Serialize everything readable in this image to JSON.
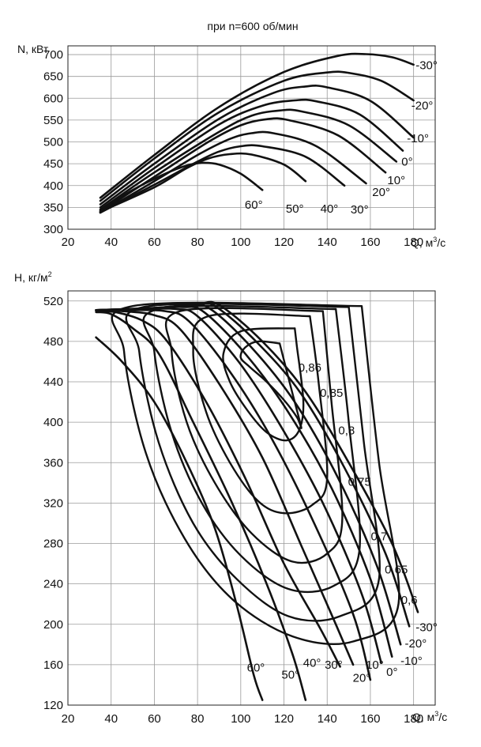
{
  "colors": {
    "curve": "#111111",
    "grid": "#9a9a9a",
    "frame": "#222222",
    "text": "#111111"
  },
  "chart_data": [
    {
      "type": "line",
      "title": "при n=600 об/мин",
      "ylabel": "N, кВт",
      "xlabel": "Q, м³/с",
      "xlabel_main": "Q, м",
      "xlabel_sup": "3",
      "xlabel_tail": "/с",
      "xlim": [
        20,
        190
      ],
      "ylim": [
        300,
        720
      ],
      "grid": true,
      "xticks": [
        "20",
        "40",
        "60",
        "80",
        "100",
        "120",
        "140",
        "160",
        "180"
      ],
      "yticks": [
        "300",
        "350",
        "400",
        "450",
        "500",
        "550",
        "600",
        "650",
        "700"
      ],
      "series": [
        {
          "name": "-30°",
          "x": [
            35,
            60,
            90,
            120,
            145,
            158,
            170,
            180
          ],
          "y": [
            372,
            470,
            580,
            660,
            697,
            701,
            694,
            677
          ]
        },
        {
          "name": "-20°",
          "x": [
            35,
            60,
            90,
            120,
            140,
            150,
            165,
            180
          ],
          "y": [
            365,
            462,
            568,
            640,
            659,
            658,
            640,
            595
          ]
        },
        {
          "name": "-10°",
          "x": [
            35,
            60,
            90,
            115,
            130,
            140,
            160,
            180
          ],
          "y": [
            357,
            450,
            553,
            612,
            627,
            625,
            594,
            510
          ]
        },
        {
          "name": "0°",
          "x": [
            35,
            60,
            90,
            110,
            125,
            135,
            155,
            175
          ],
          "y": [
            350,
            440,
            540,
            583,
            595,
            593,
            563,
            480
          ]
        },
        {
          "name": "10°",
          "x": [
            35,
            60,
            90,
            105,
            118,
            128,
            150,
            172
          ],
          "y": [
            345,
            430,
            523,
            560,
            572,
            570,
            538,
            455
          ]
        },
        {
          "name": "20°",
          "x": [
            35,
            60,
            85,
            100,
            112,
            122,
            145,
            167
          ],
          "y": [
            340,
            420,
            500,
            538,
            552,
            550,
            515,
            430
          ]
        },
        {
          "name": "30°",
          "x": [
            35,
            60,
            80,
            95,
            105,
            115,
            135,
            158
          ],
          "y": [
            338,
            410,
            470,
            507,
            520,
            520,
            490,
            405
          ]
        },
        {
          "name": "40°",
          "x": [
            35,
            60,
            80,
            90,
            100,
            110,
            130,
            148
          ],
          "y": [
            338,
            402,
            455,
            478,
            490,
            490,
            466,
            400
          ]
        },
        {
          "name": "50°",
          "x": [
            35,
            60,
            75,
            85,
            95,
            105,
            120,
            130
          ],
          "y": [
            340,
            396,
            440,
            462,
            472,
            471,
            448,
            410
          ]
        },
        {
          "name": "60°",
          "x": [
            35,
            50,
            65,
            75,
            82,
            90,
            100,
            110
          ],
          "y": [
            343,
            390,
            427,
            446,
            452,
            448,
            427,
            390
          ]
        }
      ],
      "labels": [
        {
          "text": "-30°",
          "x": 186,
          "y": 676
        },
        {
          "text": "-20°",
          "x": 184,
          "y": 583
        },
        {
          "text": "-10°",
          "x": 182,
          "y": 508
        },
        {
          "text": "0°",
          "x": 177,
          "y": 455
        },
        {
          "text": "10°",
          "x": 172,
          "y": 412
        },
        {
          "text": "20°",
          "x": 165,
          "y": 385
        },
        {
          "text": "30°",
          "x": 155,
          "y": 345
        },
        {
          "text": "40°",
          "x": 141,
          "y": 347
        },
        {
          "text": "50°",
          "x": 125,
          "y": 347
        },
        {
          "text": "60°",
          "x": 106,
          "y": 356
        }
      ]
    },
    {
      "type": "line",
      "title": "",
      "ylabel": "H, кг/м²",
      "ylabel_main": "H, кг/м",
      "ylabel_sup": "2",
      "xlabel": "Q, м³/с",
      "xlabel_main": "Q, м",
      "xlabel_sup": "3",
      "xlabel_tail": "/с",
      "xlim": [
        20,
        190
      ],
      "ylim": [
        120,
        530
      ],
      "grid": true,
      "xticks": [
        "20",
        "40",
        "60",
        "80",
        "100",
        "120",
        "140",
        "160",
        "180"
      ],
      "yticks": [
        "120",
        "160",
        "200",
        "240",
        "280",
        "320",
        "360",
        "400",
        "440",
        "480",
        "520"
      ],
      "series": [
        {
          "name": "-30°",
          "x": [
            33,
            60,
            80,
            90,
            110,
            130,
            150,
            170,
            182
          ],
          "y": [
            511,
            513,
            517,
            516,
            480,
            430,
            360,
            280,
            212
          ]
        },
        {
          "name": "-20°",
          "x": [
            33,
            60,
            78,
            88,
            108,
            128,
            148,
            167,
            178
          ],
          "y": [
            511,
            513,
            516,
            515,
            478,
            428,
            355,
            270,
            198
          ]
        },
        {
          "name": "-10°",
          "x": [
            33,
            58,
            76,
            86,
            105,
            125,
            145,
            163,
            174
          ],
          "y": [
            511,
            513,
            515,
            512,
            474,
            420,
            345,
            258,
            180
          ]
        },
        {
          "name": "0°",
          "x": [
            33,
            55,
            73,
            83,
            102,
            122,
            142,
            160,
            170
          ],
          "y": [
            511,
            512,
            514,
            509,
            468,
            410,
            335,
            245,
            168
          ]
        },
        {
          "name": "10°",
          "x": [
            33,
            52,
            70,
            80,
            99,
            118,
            138,
            156,
            165
          ],
          "y": [
            511,
            512,
            512,
            505,
            460,
            398,
            320,
            230,
            162
          ]
        },
        {
          "name": "20°",
          "x": [
            33,
            48,
            65,
            76,
            95,
            114,
            134,
            152,
            160
          ],
          "y": [
            511,
            511,
            510,
            500,
            450,
            385,
            300,
            210,
            145
          ]
        },
        {
          "name": "30°",
          "x": [
            33,
            45,
            60,
            72,
            90,
            110,
            128,
            144,
            152
          ],
          "y": [
            511,
            510,
            506,
            492,
            438,
            365,
            278,
            200,
            160
          ]
        },
        {
          "name": "40°",
          "x": [
            33,
            42,
            55,
            66,
            84,
            102,
            120,
            137,
            146
          ],
          "y": [
            510,
            509,
            500,
            480,
            420,
            345,
            260,
            195,
            158
          ]
        },
        {
          "name": "50°",
          "x": [
            33,
            40,
            50,
            62,
            78,
            96,
            112,
            124,
            130
          ],
          "y": [
            509,
            507,
            493,
            468,
            400,
            320,
            240,
            170,
            125
          ]
        },
        {
          "name": "60°",
          "x": [
            33,
            45,
            60,
            75,
            88,
            98,
            106,
            110
          ],
          "y": [
            484,
            460,
            420,
            360,
            295,
            220,
            150,
            125
          ]
        }
      ],
      "efficiency_contours": [
        {
          "name": "0,86",
          "x": [
            118,
            108,
            102,
            100,
            104,
            112,
            120,
            126,
            128,
            124,
            118
          ],
          "y": [
            478,
            480,
            474,
            464,
            455,
            440,
            422,
            405,
            395,
            428,
            478
          ]
        },
        {
          "name": "0,85",
          "x": [
            125,
            100,
            92,
            95,
            103,
            112,
            121,
            127,
            129,
            126,
            125
          ],
          "y": [
            493,
            490,
            468,
            440,
            412,
            390,
            382,
            392,
            420,
            475,
            493
          ]
        },
        {
          "name": "0,8",
          "x": [
            132,
            85,
            78,
            84,
            95,
            108,
            120,
            133,
            140,
            136,
            132
          ],
          "y": [
            505,
            505,
            470,
            410,
            360,
            322,
            310,
            318,
            345,
            440,
            505
          ]
        },
        {
          "name": "0,75",
          "x": [
            138,
            72,
            68,
            75,
            88,
            105,
            124,
            140,
            147,
            142,
            138
          ],
          "y": [
            510,
            510,
            470,
            400,
            340,
            290,
            262,
            270,
            305,
            420,
            510
          ]
        },
        {
          "name": "0,7",
          "x": [
            144,
            62,
            60,
            68,
            82,
            100,
            122,
            143,
            155,
            150,
            144
          ],
          "y": [
            512,
            512,
            470,
            390,
            320,
            268,
            235,
            238,
            275,
            400,
            512
          ]
        },
        {
          "name": "0,65",
          "x": [
            150,
            55,
            53,
            62,
            78,
            98,
            122,
            146,
            164,
            157,
            150
          ],
          "y": [
            514,
            514,
            470,
            380,
            300,
            245,
            208,
            208,
            245,
            380,
            514
          ]
        },
        {
          "name": "0,6",
          "x": [
            156,
            50,
            46,
            56,
            74,
            96,
            124,
            152,
            173,
            164,
            156
          ],
          "y": [
            515,
            515,
            470,
            370,
            285,
            225,
            188,
            183,
            220,
            360,
            515
          ]
        }
      ],
      "labels": [
        {
          "text": "0,86",
          "x": 132,
          "y": 454
        },
        {
          "text": "0,85",
          "x": 142,
          "y": 429
        },
        {
          "text": "0,8",
          "x": 149,
          "y": 392
        },
        {
          "text": "0,75",
          "x": 155,
          "y": 341
        },
        {
          "text": "0,7",
          "x": 164,
          "y": 287
        },
        {
          "text": "0,65",
          "x": 172,
          "y": 254
        },
        {
          "text": "0,6",
          "x": 178,
          "y": 224
        },
        {
          "text": "-30°",
          "x": 186,
          "y": 197
        },
        {
          "text": "-20°",
          "x": 181,
          "y": 181
        },
        {
          "text": "-10°",
          "x": 179,
          "y": 164
        },
        {
          "text": "0°",
          "x": 170,
          "y": 153
        },
        {
          "text": "10°",
          "x": 162,
          "y": 160
        },
        {
          "text": "20°",
          "x": 156,
          "y": 147
        },
        {
          "text": "30°",
          "x": 143,
          "y": 160
        },
        {
          "text": "40°",
          "x": 133,
          "y": 162
        },
        {
          "text": "50°",
          "x": 123,
          "y": 150
        },
        {
          "text": "60°",
          "x": 107,
          "y": 157
        }
      ]
    }
  ]
}
